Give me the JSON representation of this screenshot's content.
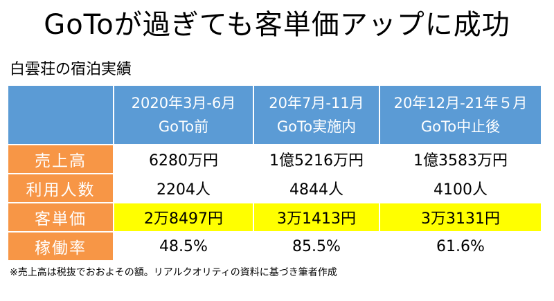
{
  "title": "GoToが過ぎても客単価アップに成功",
  "subtitle": "白雲荘の宿泊実績",
  "table": {
    "columns": [
      {
        "period": "2020年3月-6月",
        "label": "GoTo前"
      },
      {
        "period": "20年7月-11月",
        "label": "GoTo実施内"
      },
      {
        "period": "20年12月-21年５月",
        "label": "GoTo中止後"
      }
    ],
    "rows": [
      {
        "label": "売上高",
        "values": [
          "6280万円",
          "1億5216万円",
          "1億3583万円"
        ],
        "highlight": false
      },
      {
        "label": "利用人数",
        "values": [
          "2204人",
          "4844人",
          "4100人"
        ],
        "highlight": false
      },
      {
        "label": "客単価",
        "values": [
          "2万8497円",
          "3万1413円",
          "3万3131円"
        ],
        "highlight": true
      },
      {
        "label": "稼働率",
        "values": [
          "48.5%",
          "85.5%",
          "61.6%"
        ],
        "highlight": false
      }
    ]
  },
  "note": "※売上高は税抜でおおよその額。リアルクオリティの資料に基づき筆者作成",
  "colors": {
    "header_bg": "#5b9bd5",
    "row_label_bg": "#f79646",
    "highlight_bg": "#ffff00"
  }
}
